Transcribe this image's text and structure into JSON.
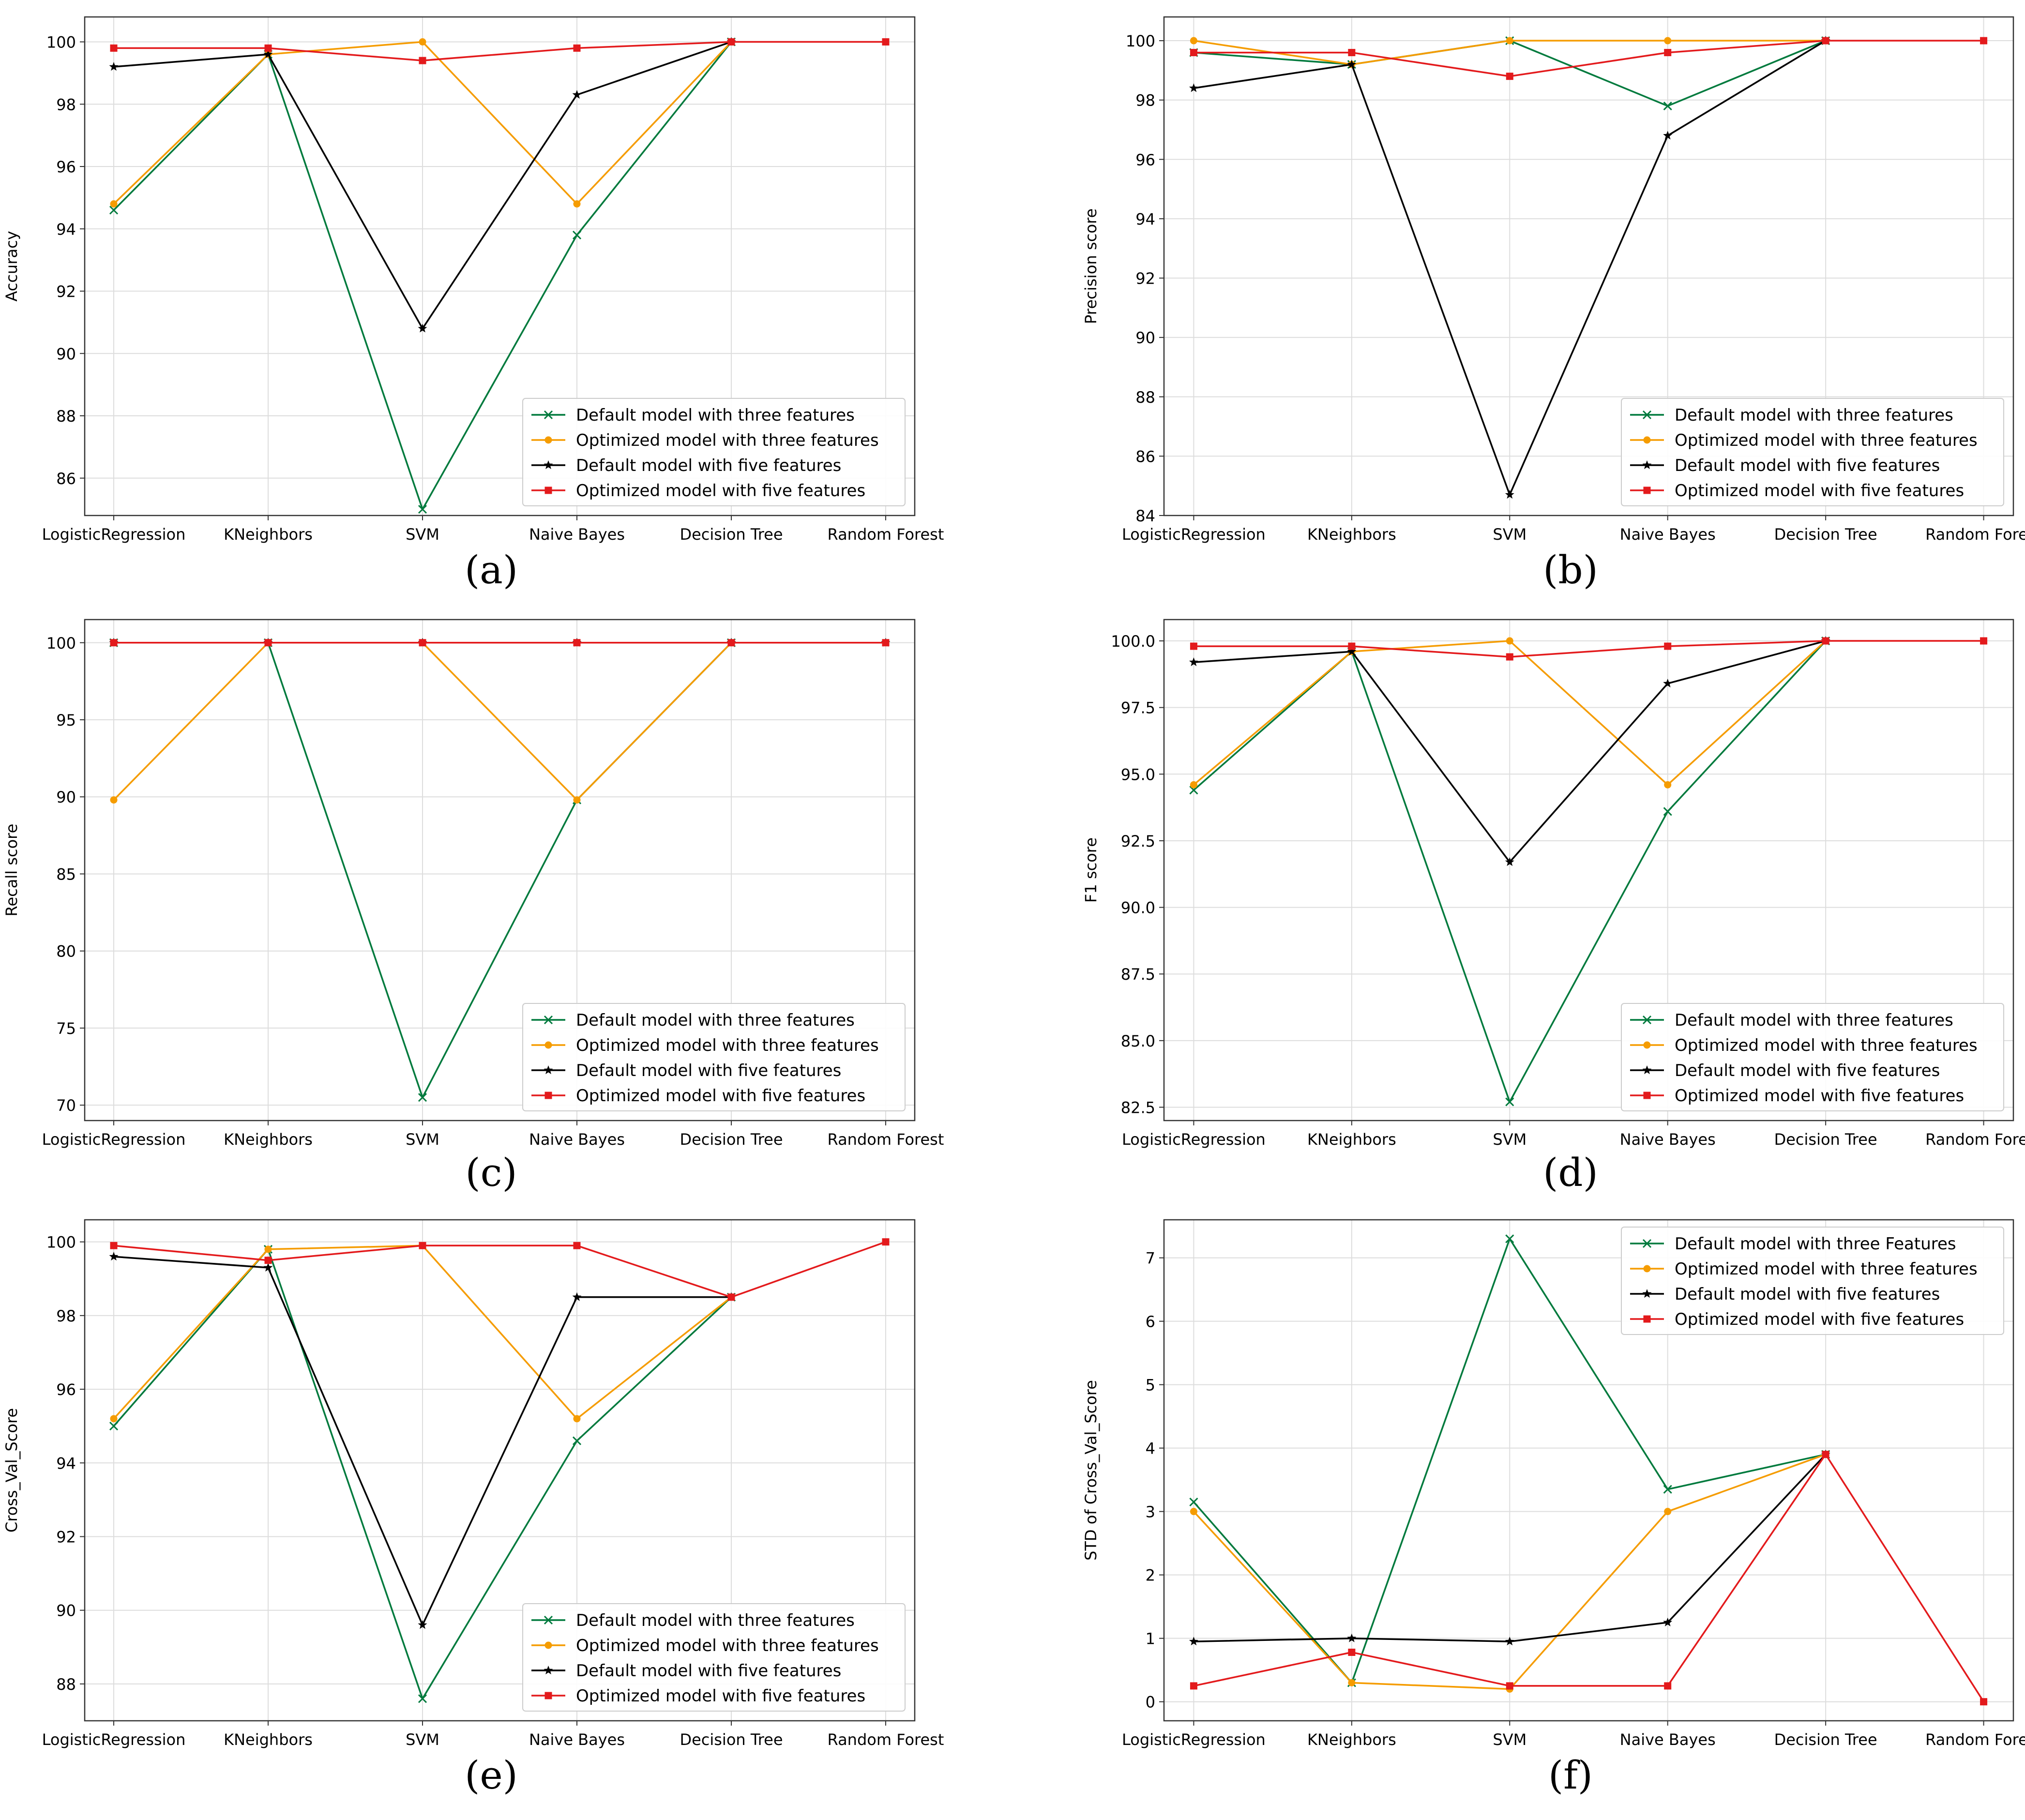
{
  "categories": [
    "LogisticRegression",
    "KNeighbors",
    "SVM",
    "Naive Bayes",
    "Decision Tree",
    "Random Forest"
  ],
  "series_styles": [
    {
      "color": "#007a3d",
      "marker": "x"
    },
    {
      "color": "#f59c00",
      "marker": "o"
    },
    {
      "color": "#000000",
      "marker": "*"
    },
    {
      "color": "#e31a1c",
      "marker": "s"
    }
  ],
  "chart_data": [
    {
      "type": "line",
      "panel": "a",
      "caption": "(a)",
      "title": "",
      "xlabel": "",
      "ylabel": "Accuracy",
      "ylim": [
        84.8,
        100.8
      ],
      "yticks": [
        86,
        88,
        90,
        92,
        94,
        96,
        98,
        100
      ],
      "ytick_labels": [
        "86",
        "88",
        "90",
        "92",
        "94",
        "96",
        "98",
        "100"
      ],
      "legend_position": "lower-right",
      "categories": [
        "LogisticRegression",
        "KNeighbors",
        "SVM",
        "Naive Bayes",
        "Decision Tree",
        "Random Forest"
      ],
      "series": [
        {
          "name": "Default model with three features",
          "values": [
            94.6,
            99.6,
            85.0,
            93.8,
            100.0,
            null
          ]
        },
        {
          "name": "Optimized model with three features",
          "values": [
            94.8,
            99.6,
            100.0,
            94.8,
            100.0,
            null
          ]
        },
        {
          "name": "Default model with five features",
          "values": [
            99.2,
            99.6,
            90.8,
            98.3,
            100.0,
            null
          ]
        },
        {
          "name": "Optimized model with five features",
          "values": [
            99.8,
            99.8,
            99.4,
            99.8,
            100.0,
            100.0
          ]
        }
      ]
    },
    {
      "type": "line",
      "panel": "b",
      "caption": "(b)",
      "title": "",
      "xlabel": "",
      "ylabel": "Precision score",
      "ylim": [
        84.0,
        100.8
      ],
      "yticks": [
        84,
        86,
        88,
        90,
        92,
        94,
        96,
        98,
        100
      ],
      "ytick_labels": [
        "84",
        "86",
        "88",
        "90",
        "92",
        "94",
        "96",
        "98",
        "100"
      ],
      "legend_position": "lower-right",
      "categories": [
        "LogisticRegression",
        "KNeighbors",
        "SVM",
        "Naive Bayes",
        "Decision Tree",
        "Random Forest"
      ],
      "series": [
        {
          "name": "Default model with three features",
          "values": [
            99.6,
            99.2,
            100.0,
            97.8,
            100.0,
            null
          ]
        },
        {
          "name": "Optimized model with three features",
          "values": [
            100.0,
            99.2,
            100.0,
            100.0,
            100.0,
            null
          ]
        },
        {
          "name": "Default model with five features",
          "values": [
            98.4,
            99.2,
            84.7,
            96.8,
            100.0,
            null
          ]
        },
        {
          "name": "Optimized model with five features",
          "values": [
            99.6,
            99.6,
            98.8,
            99.6,
            100.0,
            100.0
          ]
        }
      ]
    },
    {
      "type": "line",
      "panel": "c",
      "caption": "(c)",
      "title": "",
      "xlabel": "",
      "ylabel": "Recall score",
      "ylim": [
        69.0,
        101.5
      ],
      "yticks": [
        70,
        75,
        80,
        85,
        90,
        95,
        100
      ],
      "ytick_labels": [
        "70",
        "75",
        "80",
        "85",
        "90",
        "95",
        "100"
      ],
      "legend_position": "lower-right",
      "categories": [
        "LogisticRegression",
        "KNeighbors",
        "SVM",
        "Naive Bayes",
        "Decision Tree",
        "Random Forest"
      ],
      "series": [
        {
          "name": "Default model with three features",
          "values": [
            100.0,
            100.0,
            70.5,
            89.8,
            100.0,
            null
          ]
        },
        {
          "name": "Optimized model with three features",
          "values": [
            89.8,
            100.0,
            100.0,
            89.8,
            100.0,
            null
          ]
        },
        {
          "name": "Default model with five features",
          "values": [
            100.0,
            100.0,
            100.0,
            100.0,
            100.0,
            100.0
          ]
        },
        {
          "name": "Optimized model with five features",
          "values": [
            100.0,
            100.0,
            100.0,
            100.0,
            100.0,
            100.0
          ]
        }
      ]
    },
    {
      "type": "line",
      "panel": "d",
      "caption": "(d)",
      "title": "",
      "xlabel": "",
      "ylabel": "F1 score",
      "ylim": [
        82.0,
        100.8
      ],
      "yticks": [
        82.5,
        85.0,
        87.5,
        90.0,
        92.5,
        95.0,
        97.5,
        100.0
      ],
      "ytick_labels": [
        "82.5",
        "85.0",
        "87.5",
        "90.0",
        "92.5",
        "95.0",
        "97.5",
        "100.0"
      ],
      "legend_position": "lower-right",
      "categories": [
        "LogisticRegression",
        "KNeighbors",
        "SVM",
        "Naive Bayes",
        "Decision Tree",
        "Random Forest"
      ],
      "series": [
        {
          "name": "Default model with three features",
          "values": [
            94.4,
            99.6,
            82.7,
            93.6,
            100.0,
            null
          ]
        },
        {
          "name": "Optimized model with three features",
          "values": [
            94.6,
            99.6,
            100.0,
            94.6,
            100.0,
            null
          ]
        },
        {
          "name": "Default model with five features",
          "values": [
            99.2,
            99.6,
            91.7,
            98.4,
            100.0,
            null
          ]
        },
        {
          "name": "Optimized model with five features",
          "values": [
            99.8,
            99.8,
            99.4,
            99.8,
            100.0,
            100.0
          ]
        }
      ]
    },
    {
      "type": "line",
      "panel": "e",
      "caption": "(e)",
      "title": "",
      "xlabel": "",
      "ylabel": "Cross_Val_Score",
      "ylim": [
        87.0,
        100.6
      ],
      "yticks": [
        88,
        90,
        92,
        94,
        96,
        98,
        100
      ],
      "ytick_labels": [
        "88",
        "90",
        "92",
        "94",
        "96",
        "98",
        "100"
      ],
      "legend_position": "lower-right",
      "categories": [
        "LogisticRegression",
        "KNeighbors",
        "SVM",
        "Naive Bayes",
        "Decision Tree",
        "Random Forest"
      ],
      "series": [
        {
          "name": "Default model with three features",
          "values": [
            95.0,
            99.8,
            87.6,
            94.6,
            98.5,
            null
          ]
        },
        {
          "name": "Optimized model with three features",
          "values": [
            95.2,
            99.8,
            99.9,
            95.2,
            98.5,
            null
          ]
        },
        {
          "name": "Default model with five features",
          "values": [
            99.6,
            99.3,
            89.6,
            98.5,
            98.5,
            null
          ]
        },
        {
          "name": "Optimized model with five features",
          "values": [
            99.9,
            99.5,
            99.9,
            99.9,
            98.5,
            100.0
          ]
        }
      ]
    },
    {
      "type": "line",
      "panel": "f",
      "caption": "(f)",
      "title": "",
      "xlabel": "",
      "ylabel": "STD of Cross_Val_Score",
      "ylim": [
        -0.3,
        7.6
      ],
      "yticks": [
        0,
        1,
        2,
        3,
        4,
        5,
        6,
        7
      ],
      "ytick_labels": [
        "0",
        "1",
        "2",
        "3",
        "4",
        "5",
        "6",
        "7"
      ],
      "legend_position": "top-right",
      "categories": [
        "LogisticRegression",
        "KNeighbors",
        "SVM",
        "Naive Bayes",
        "Decision Tree",
        "Random Forest"
      ],
      "series": [
        {
          "name": "Default model with three Features",
          "values": [
            3.15,
            0.3,
            7.3,
            3.35,
            3.9,
            null
          ]
        },
        {
          "name": "Optimized model with three features",
          "values": [
            3.0,
            0.3,
            0.2,
            3.0,
            3.9,
            null
          ]
        },
        {
          "name": "Default model with five features",
          "values": [
            0.95,
            1.0,
            0.95,
            1.25,
            3.9,
            null
          ]
        },
        {
          "name": "Optimized model with five features",
          "values": [
            0.25,
            0.78,
            0.25,
            0.25,
            3.9,
            0.0
          ]
        }
      ]
    }
  ]
}
